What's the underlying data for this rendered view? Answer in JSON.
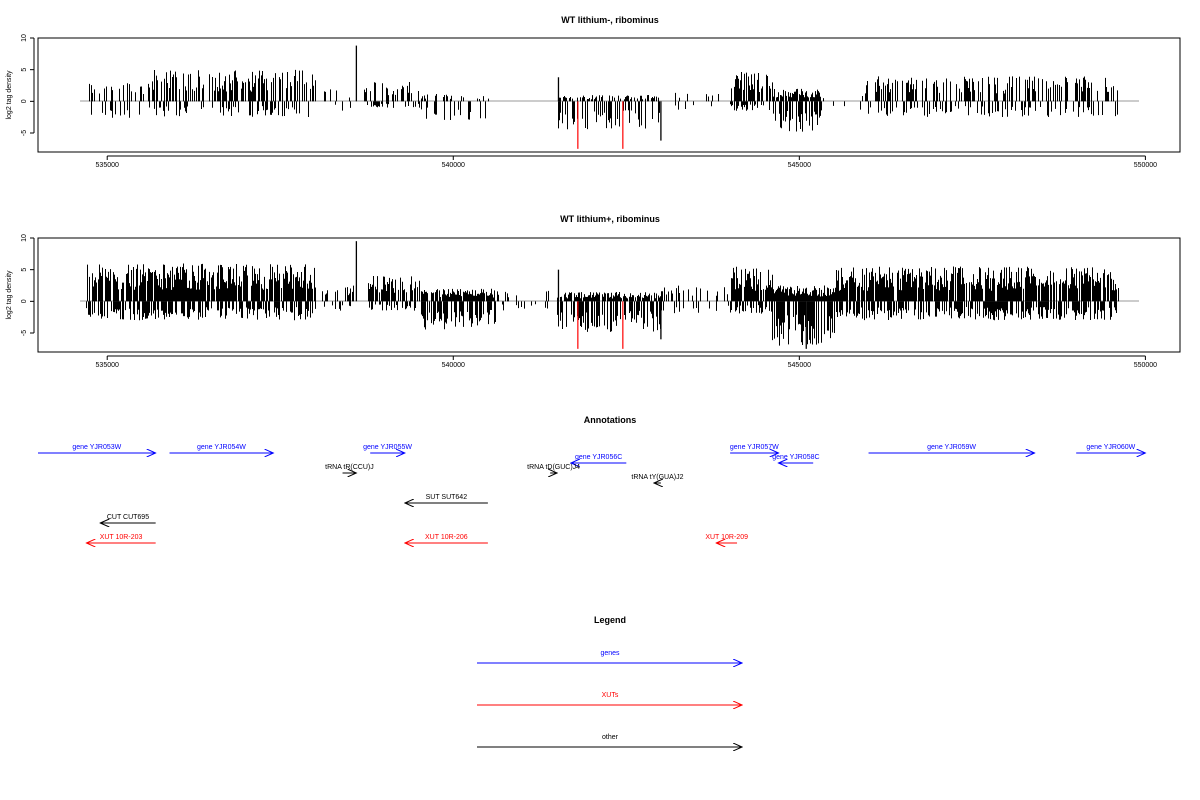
{
  "colors": {
    "gene": "#0000ff",
    "xut": "#ff0000",
    "other": "#000000",
    "zero_line": "#999999",
    "axis": "#000000"
  },
  "chart_data": [
    {
      "type": "bar",
      "title": "WT lithium-, ribominus",
      "ylabel": "log2 tag density",
      "xlim": [
        534000,
        550500
      ],
      "ylim": [
        -8,
        10
      ],
      "xticks": [
        535000,
        540000,
        545000,
        550000
      ],
      "xtick_labels": [
        "535000",
        "540000",
        "545000",
        "550000"
      ],
      "yticks": [
        -5,
        0,
        5,
        10
      ],
      "ytick_labels": [
        "-5",
        "0",
        "5",
        "10"
      ],
      "highlight_bars": [
        {
          "x": 541800,
          "y": -7.5,
          "color": "red"
        },
        {
          "x": 542450,
          "y": -7.5,
          "color": "red"
        }
      ],
      "peaks": [
        {
          "x": 538600,
          "y": 8.8
        },
        {
          "x": 541520,
          "y": 3.8
        },
        {
          "x": 543000,
          "y": -6.2
        }
      ],
      "segments": [
        {
          "x0": 534700,
          "x1": 535600,
          "pos": 3.0,
          "neg": -3.0,
          "dens": 0.35
        },
        {
          "x0": 535600,
          "x1": 538000,
          "pos": 5.0,
          "neg": -2.5,
          "dens": 0.5
        },
        {
          "x0": 538100,
          "x1": 538550,
          "pos": 2.0,
          "neg": -1.5,
          "dens": 0.15
        },
        {
          "x0": 538700,
          "x1": 539500,
          "pos": 3.2,
          "neg": -1.2,
          "dens": 0.35
        },
        {
          "x0": 539500,
          "x1": 540500,
          "pos": 1.2,
          "neg": -3.0,
          "dens": 0.3
        },
        {
          "x0": 541500,
          "x1": 543000,
          "pos": 1.0,
          "neg": -4.5,
          "dens": 0.45
        },
        {
          "x0": 543200,
          "x1": 544000,
          "pos": 1.5,
          "neg": -1.5,
          "dens": 0.15
        },
        {
          "x0": 544000,
          "x1": 544600,
          "pos": 4.8,
          "neg": -1.5,
          "dens": 0.6
        },
        {
          "x0": 544600,
          "x1": 545300,
          "pos": 2.0,
          "neg": -5.0,
          "dens": 0.9
        },
        {
          "x0": 545300,
          "x1": 545900,
          "pos": 1.0,
          "neg": -2.0,
          "dens": 0.1
        },
        {
          "x0": 545900,
          "x1": 549600,
          "pos": 4.0,
          "neg": -2.5,
          "dens": 0.45
        }
      ]
    },
    {
      "type": "bar",
      "title": "WT lithium+, ribominus",
      "ylabel": "log2 tag density",
      "xlim": [
        534000,
        550500
      ],
      "ylim": [
        -8,
        10
      ],
      "xticks": [
        535000,
        540000,
        545000,
        550000
      ],
      "xtick_labels": [
        "535000",
        "540000",
        "545000",
        "550000"
      ],
      "yticks": [
        -5,
        0,
        5,
        10
      ],
      "ytick_labels": [
        "-5",
        "0",
        "5",
        "10"
      ],
      "highlight_bars": [
        {
          "x": 541800,
          "y": -7.5,
          "color": "red"
        },
        {
          "x": 542450,
          "y": -7.5,
          "color": "red"
        }
      ],
      "peaks": [
        {
          "x": 538600,
          "y": 9.5
        },
        {
          "x": 541520,
          "y": 5.0
        },
        {
          "x": 543000,
          "y": -6.0
        },
        {
          "x": 545100,
          "y": -7.5
        }
      ],
      "segments": [
        {
          "x0": 534700,
          "x1": 538000,
          "pos": 6.0,
          "neg": -3.0,
          "dens": 0.85
        },
        {
          "x0": 538100,
          "x1": 538550,
          "pos": 2.5,
          "neg": -1.5,
          "dens": 0.3
        },
        {
          "x0": 538700,
          "x1": 539500,
          "pos": 4.0,
          "neg": -1.5,
          "dens": 0.7
        },
        {
          "x0": 539500,
          "x1": 540600,
          "pos": 2.0,
          "neg": -4.5,
          "dens": 0.85
        },
        {
          "x0": 540600,
          "x1": 541400,
          "pos": 2.0,
          "neg": -1.5,
          "dens": 0.2
        },
        {
          "x0": 541500,
          "x1": 543000,
          "pos": 1.5,
          "neg": -5.0,
          "dens": 0.8
        },
        {
          "x0": 543000,
          "x1": 544000,
          "pos": 2.5,
          "neg": -2.0,
          "dens": 0.25
        },
        {
          "x0": 544000,
          "x1": 544600,
          "pos": 5.5,
          "neg": -2.0,
          "dens": 0.9
        },
        {
          "x0": 544600,
          "x1": 545500,
          "pos": 2.5,
          "neg": -7.0,
          "dens": 1.0
        },
        {
          "x0": 545500,
          "x1": 549600,
          "pos": 5.5,
          "neg": -3.0,
          "dens": 0.85
        }
      ]
    },
    {
      "type": "annotation-track",
      "title": "Annotations",
      "xlim": [
        534000,
        550500
      ],
      "features": [
        {
          "label": "gene YJR053W",
          "kind": "gene",
          "start": 534000,
          "end": 535700,
          "strand": "+",
          "row": 0
        },
        {
          "label": "gene YJR054W",
          "kind": "gene",
          "start": 535900,
          "end": 537400,
          "strand": "+",
          "row": 0
        },
        {
          "label": "gene YJR055W",
          "kind": "gene",
          "start": 538800,
          "end": 539300,
          "strand": "+",
          "row": 0
        },
        {
          "label": "gene YJR056C",
          "kind": "gene",
          "start": 541700,
          "end": 542500,
          "strand": "-",
          "row": 0.5
        },
        {
          "label": "gene YJR057W",
          "kind": "gene",
          "start": 544000,
          "end": 544700,
          "strand": "+",
          "row": 0
        },
        {
          "label": "gene YJR058C",
          "kind": "gene",
          "start": 544700,
          "end": 545200,
          "strand": "-",
          "row": 0.5
        },
        {
          "label": "gene YJR059W",
          "kind": "gene",
          "start": 546000,
          "end": 548400,
          "strand": "+",
          "row": 0
        },
        {
          "label": "gene YJR060W",
          "kind": "gene",
          "start": 549000,
          "end": 550000,
          "strand": "+",
          "row": 0
        },
        {
          "label": "tRNA tR(CCU)J",
          "kind": "other",
          "start": 538400,
          "end": 538600,
          "strand": "+",
          "row": 1
        },
        {
          "label": "tRNA tD(GUC)J4",
          "kind": "other",
          "start": 541400,
          "end": 541500,
          "strand": "+",
          "row": 1
        },
        {
          "label": "tRNA tY(GUA)J2",
          "kind": "other",
          "start": 542900,
          "end": 543000,
          "strand": "-",
          "row": 1.5
        },
        {
          "label": "SUT SUT642",
          "kind": "other",
          "start": 539300,
          "end": 540500,
          "strand": "-",
          "row": 2.5
        },
        {
          "label": "CUT CUT695",
          "kind": "other",
          "start": 534900,
          "end": 535700,
          "strand": "-",
          "row": 3.5
        },
        {
          "label": "XUT 10R-203",
          "kind": "xut",
          "start": 534700,
          "end": 535700,
          "strand": "-",
          "row": 4.5
        },
        {
          "label": "XUT 10R-206",
          "kind": "xut",
          "start": 539300,
          "end": 540500,
          "strand": "-",
          "row": 4.5
        },
        {
          "label": "XUT 10R-209",
          "kind": "xut",
          "start": 543800,
          "end": 544100,
          "strand": "-",
          "row": 4.5
        }
      ]
    },
    {
      "type": "legend",
      "title": "Legend",
      "entries": [
        {
          "name": "genes",
          "kind": "gene"
        },
        {
          "name": "XUTs",
          "kind": "xut"
        },
        {
          "name": "other",
          "kind": "other"
        }
      ]
    }
  ]
}
